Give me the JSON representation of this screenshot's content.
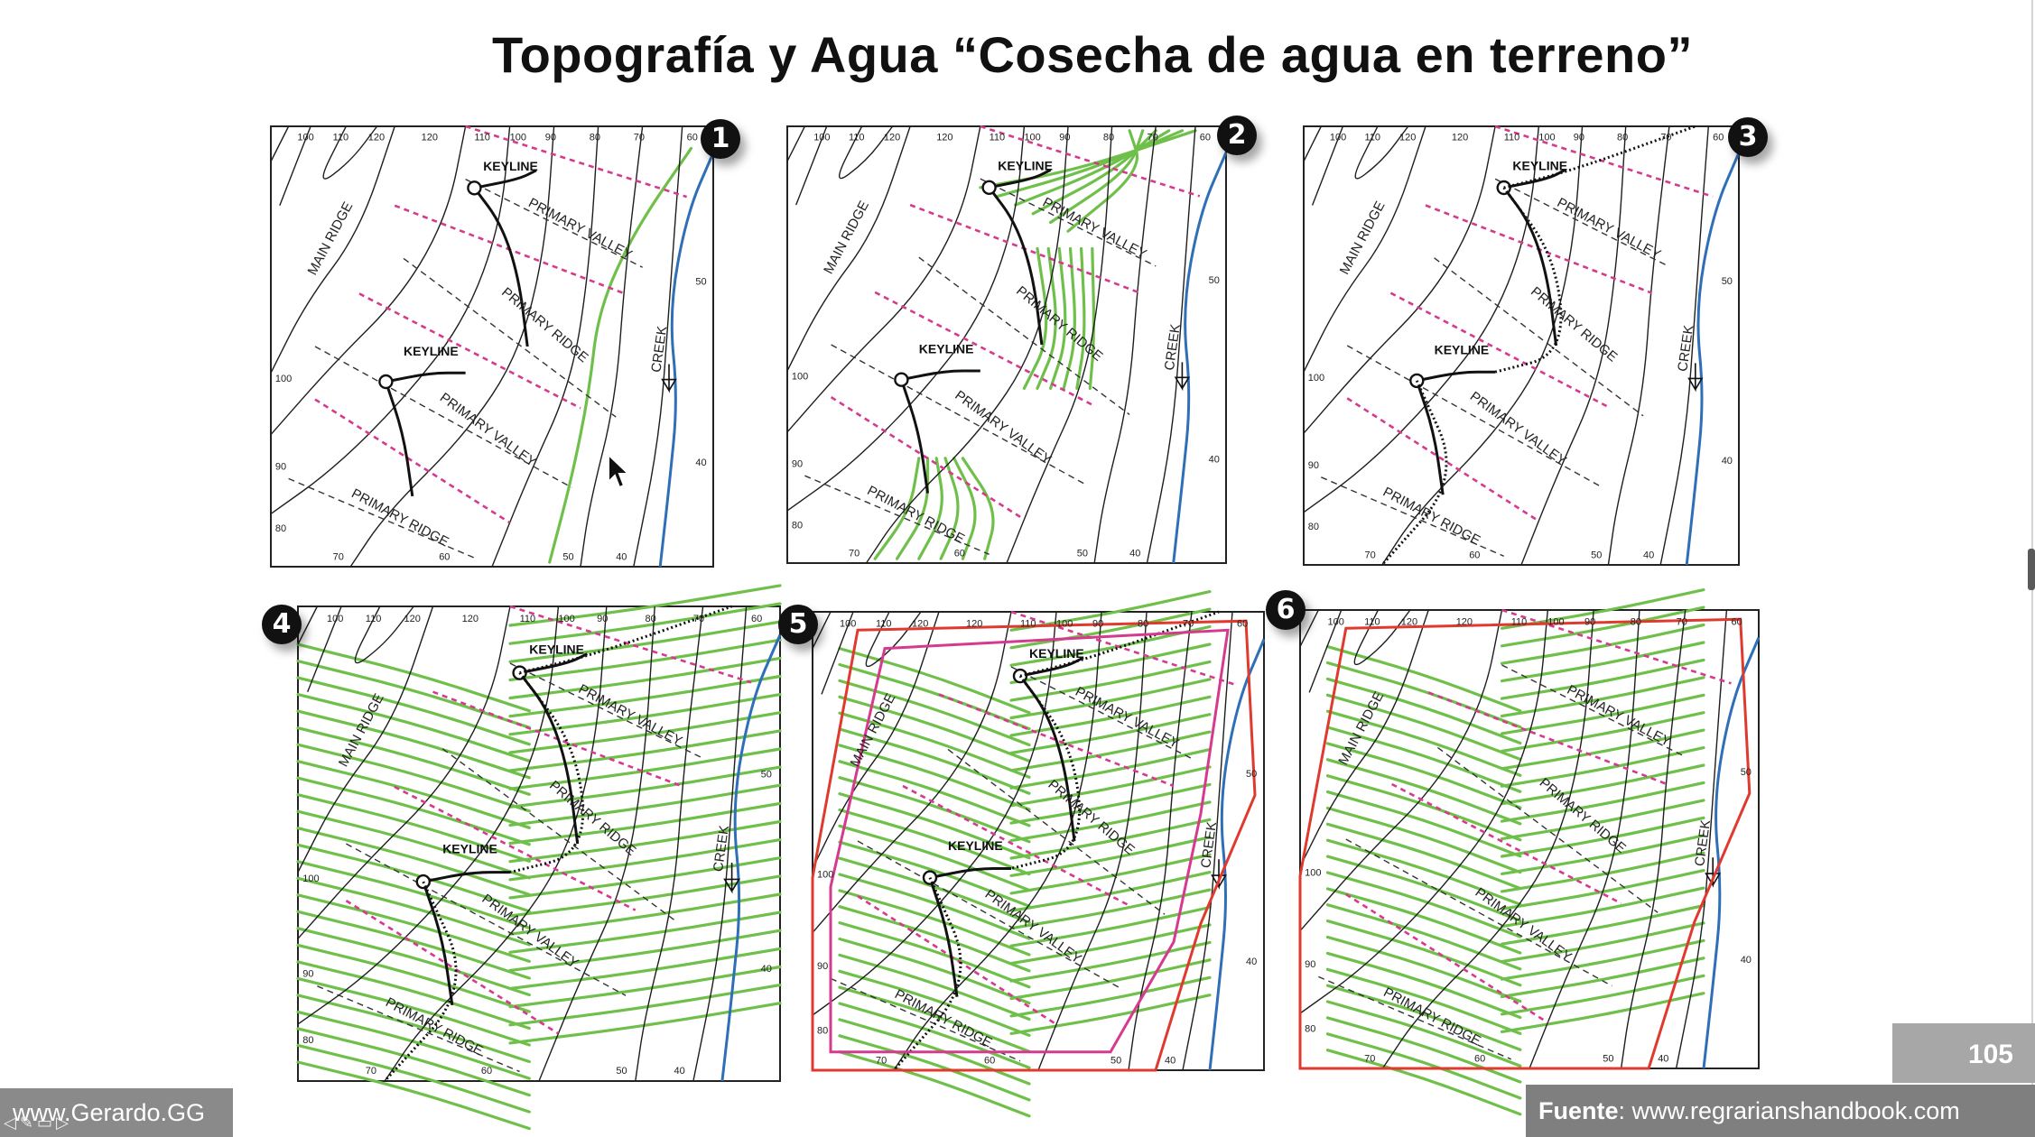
{
  "title": "Topografía y Agua “Cosecha de agua en terreno”",
  "colors": {
    "contour": "#1e1e1e",
    "keyline": "#111111",
    "valley_line": "#d63a8e",
    "ridge_line": "#333333",
    "creek": "#2e6fb8",
    "cultivation": "#6fc04a",
    "boundary_outer": "#e03a2f",
    "boundary_inner": "#d63a8e",
    "badge": "#111111"
  },
  "map_labels": {
    "main_ridge": "MAIN RIDGE",
    "primary_valley": "PRIMARY VALLEY",
    "primary_ridge": "PRIMARY RIDGE",
    "creek": "CREEK",
    "keyline": "KEYLINE"
  },
  "contour_labels": {
    "top": [
      "100",
      "110",
      "120",
      "120",
      "110",
      "100",
      "90",
      "80",
      "70",
      "60"
    ],
    "right": [
      "50",
      "40"
    ],
    "left": [
      "100",
      "90",
      "80"
    ],
    "bottom": [
      "70",
      "60",
      "50",
      "40"
    ]
  },
  "panels": [
    {
      "number": "1"
    },
    {
      "number": "2"
    },
    {
      "number": "3"
    },
    {
      "number": "4"
    },
    {
      "number": "5"
    },
    {
      "number": "6"
    }
  ],
  "footer": {
    "page_number": "105",
    "source_label": "Fuente",
    "source_url": ": www.regrarianshandbook.com",
    "website": "www.Gerardo.GG",
    "controls": [
      "◁",
      "✎",
      "▭",
      "▷"
    ]
  },
  "icons": {
    "cursor": "arrow-cursor-icon",
    "badge": "numbered-circle-icon"
  }
}
